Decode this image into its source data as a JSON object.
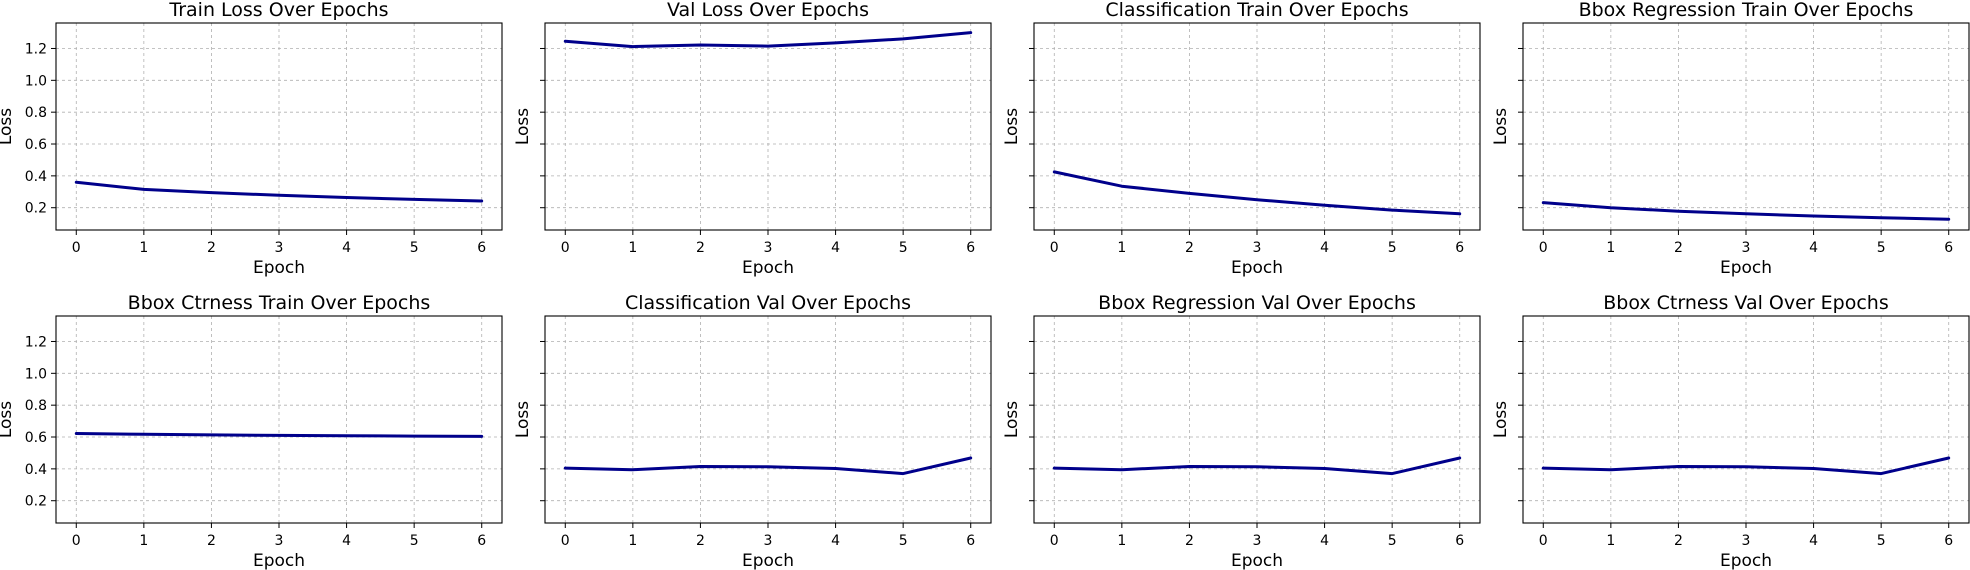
{
  "colors": {
    "line": "#00008b"
  },
  "chart_data": [
    {
      "type": "line",
      "title": "Train Loss Over Epochs",
      "xlabel": "Epoch",
      "ylabel": "Loss",
      "show_ytick_labels": true,
      "x": [
        0,
        1,
        2,
        3,
        4,
        5,
        6
      ],
      "values": [
        0.36,
        0.315,
        0.295,
        0.278,
        0.264,
        0.252,
        0.242
      ],
      "ylim": [
        0.06,
        1.36
      ],
      "xlim": [
        -0.3,
        6.3
      ],
      "xticks": [
        "0",
        "1",
        "2",
        "3",
        "4",
        "5",
        "6"
      ],
      "yticks": [
        "0.2",
        "0.4",
        "0.6",
        "0.8",
        "1.0",
        "1.2"
      ],
      "grid": true
    },
    {
      "type": "line",
      "title": "Val Loss Over Epochs",
      "xlabel": "Epoch",
      "ylabel": "Loss",
      "show_ytick_labels": false,
      "x": [
        0,
        1,
        2,
        3,
        4,
        5,
        6
      ],
      "values": [
        1.245,
        1.212,
        1.222,
        1.215,
        1.235,
        1.26,
        1.3
      ],
      "ylim": [
        0.06,
        1.36
      ],
      "xlim": [
        -0.3,
        6.3
      ],
      "xticks": [
        "0",
        "1",
        "2",
        "3",
        "4",
        "5",
        "6"
      ],
      "yticks": [
        "0.2",
        "0.4",
        "0.6",
        "0.8",
        "1.0",
        "1.2"
      ],
      "grid": true
    },
    {
      "type": "line",
      "title": "Classification Train Over Epochs",
      "xlabel": "Epoch",
      "ylabel": "Loss",
      "show_ytick_labels": false,
      "x": [
        0,
        1,
        2,
        3,
        4,
        5,
        6
      ],
      "values": [
        0.425,
        0.335,
        0.29,
        0.25,
        0.215,
        0.185,
        0.162
      ],
      "ylim": [
        0.06,
        1.36
      ],
      "xlim": [
        -0.3,
        6.3
      ],
      "xticks": [
        "0",
        "1",
        "2",
        "3",
        "4",
        "5",
        "6"
      ],
      "yticks": [
        "0.2",
        "0.4",
        "0.6",
        "0.8",
        "1.0",
        "1.2"
      ],
      "grid": true
    },
    {
      "type": "line",
      "title": "Bbox Regression Train Over Epochs",
      "xlabel": "Epoch",
      "ylabel": "Loss",
      "show_ytick_labels": false,
      "x": [
        0,
        1,
        2,
        3,
        4,
        5,
        6
      ],
      "values": [
        0.232,
        0.2,
        0.178,
        0.162,
        0.148,
        0.137,
        0.128
      ],
      "ylim": [
        0.06,
        1.36
      ],
      "xlim": [
        -0.3,
        6.3
      ],
      "xticks": [
        "0",
        "1",
        "2",
        "3",
        "4",
        "5",
        "6"
      ],
      "yticks": [
        "0.2",
        "0.4",
        "0.6",
        "0.8",
        "1.0",
        "1.2"
      ],
      "grid": true
    },
    {
      "type": "line",
      "title": "Bbox Ctrness Train Over Epochs",
      "xlabel": "Epoch",
      "ylabel": "Loss",
      "show_ytick_labels": true,
      "x": [
        0,
        1,
        2,
        3,
        4,
        5,
        6
      ],
      "values": [
        0.622,
        0.617,
        0.613,
        0.61,
        0.608,
        0.606,
        0.604
      ],
      "ylim": [
        0.06,
        1.36
      ],
      "xlim": [
        -0.3,
        6.3
      ],
      "xticks": [
        "0",
        "1",
        "2",
        "3",
        "4",
        "5",
        "6"
      ],
      "yticks": [
        "0.2",
        "0.4",
        "0.6",
        "0.8",
        "1.0",
        "1.2"
      ],
      "grid": true
    },
    {
      "type": "line",
      "title": "Classification Val Over Epochs",
      "xlabel": "Epoch",
      "ylabel": "Loss",
      "show_ytick_labels": false,
      "x": [
        0,
        1,
        2,
        3,
        4,
        5,
        6
      ],
      "values": [
        0.405,
        0.395,
        0.415,
        0.413,
        0.402,
        0.37,
        0.468
      ],
      "ylim": [
        0.06,
        1.36
      ],
      "xlim": [
        -0.3,
        6.3
      ],
      "xticks": [
        "0",
        "1",
        "2",
        "3",
        "4",
        "5",
        "6"
      ],
      "yticks": [
        "0.2",
        "0.4",
        "0.6",
        "0.8",
        "1.0",
        "1.2"
      ],
      "grid": true
    },
    {
      "type": "line",
      "title": "Bbox Regression Val Over Epochs",
      "xlabel": "Epoch",
      "ylabel": "Loss",
      "show_ytick_labels": false,
      "x": [
        0,
        1,
        2,
        3,
        4,
        5,
        6
      ],
      "values": [
        0.405,
        0.395,
        0.415,
        0.413,
        0.402,
        0.37,
        0.468
      ],
      "ylim": [
        0.06,
        1.36
      ],
      "xlim": [
        -0.3,
        6.3
      ],
      "xticks": [
        "0",
        "1",
        "2",
        "3",
        "4",
        "5",
        "6"
      ],
      "yticks": [
        "0.2",
        "0.4",
        "0.6",
        "0.8",
        "1.0",
        "1.2"
      ],
      "grid": true
    },
    {
      "type": "line",
      "title": "Bbox Ctrness Val Over Epochs",
      "xlabel": "Epoch",
      "ylabel": "Loss",
      "show_ytick_labels": false,
      "x": [
        0,
        1,
        2,
        3,
        4,
        5,
        6
      ],
      "values": [
        0.405,
        0.395,
        0.415,
        0.413,
        0.402,
        0.37,
        0.468
      ],
      "ylim": [
        0.06,
        1.36
      ],
      "xlim": [
        -0.3,
        6.3
      ],
      "xticks": [
        "0",
        "1",
        "2",
        "3",
        "4",
        "5",
        "6"
      ],
      "yticks": [
        "0.2",
        "0.4",
        "0.6",
        "0.8",
        "1.0",
        "1.2"
      ],
      "grid": true
    }
  ]
}
